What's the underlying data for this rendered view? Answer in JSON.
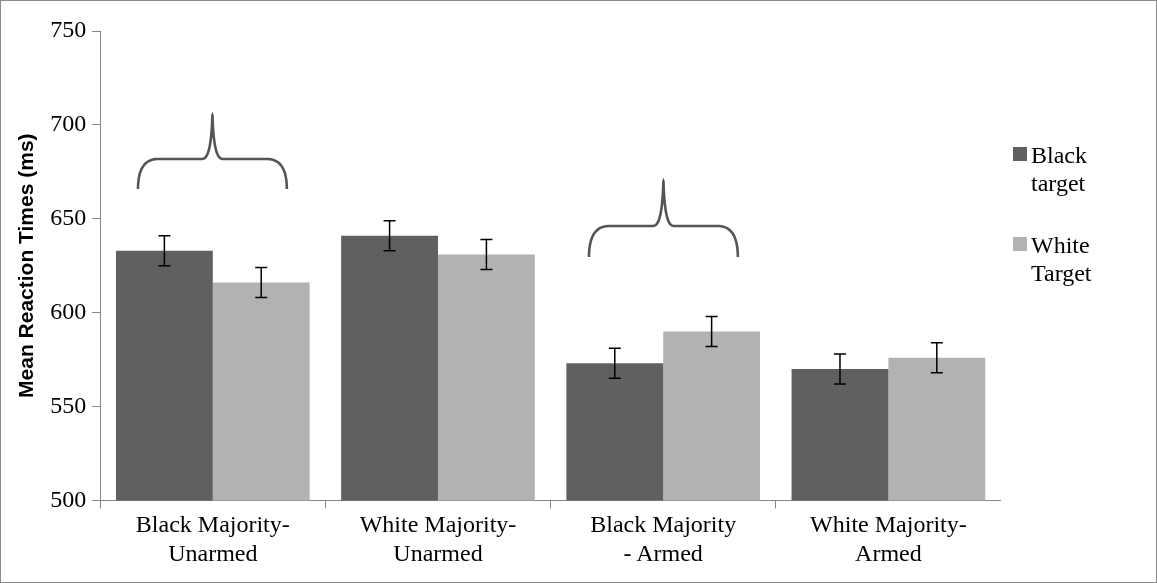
{
  "chart_data": {
    "type": "bar",
    "ylabel": "Mean Reaction Times (ms)",
    "categories": [
      "Black Majority-Unarmed",
      "White Majority-Unarmed",
      "Black Majority - Armed",
      "White Majority-Armed"
    ],
    "series": [
      {
        "name": "Black target",
        "color": "#606060",
        "values": [
          633,
          641,
          573,
          570
        ],
        "errors": [
          8,
          8,
          8,
          8
        ]
      },
      {
        "name": "White Target",
        "color": "#b2b2b2",
        "values": [
          616,
          631,
          590,
          576
        ],
        "errors": [
          8,
          8,
          8,
          8
        ]
      }
    ],
    "ylim": [
      500,
      750
    ],
    "yticks": [
      500,
      550,
      600,
      650,
      700,
      750
    ],
    "grid": false,
    "legend": "right"
  }
}
